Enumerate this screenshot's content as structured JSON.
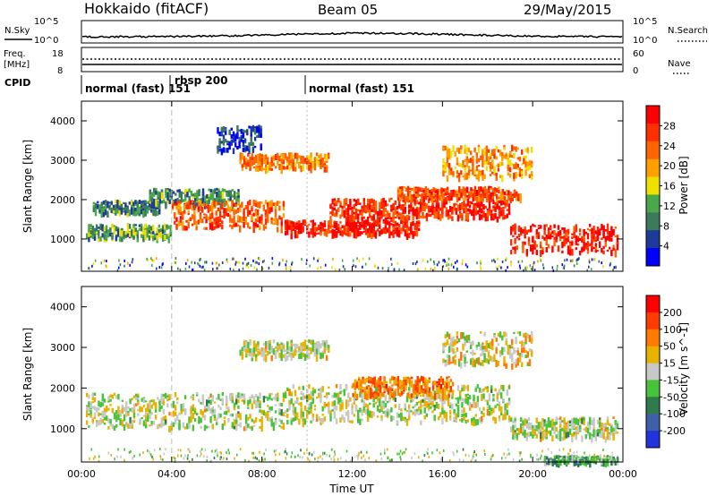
{
  "header": {
    "station": "Hokkaido (fitACF)",
    "beam": "Beam 05",
    "date": "29/May/2015"
  },
  "top_panels": {
    "nsky_label": "N.Sky",
    "nsearch_label": "N.Search",
    "freq_label_1": "Freq.",
    "freq_label_2": "[MHz]",
    "nave_label": "Nave",
    "cpid_label": "CPID",
    "left_ticks_noise": [
      "10^5",
      "10^0"
    ],
    "right_ticks_noise": [
      "10^5",
      "10^0"
    ],
    "left_ticks_freq": [
      "18",
      "8"
    ],
    "right_ticks_freq": [
      "60",
      "0"
    ],
    "cpid_segments": [
      {
        "label": "normal (fast) 151",
        "start_hour": 0.0
      },
      {
        "label": "rbsp 200",
        "start_hour": 4.0
      },
      {
        "label": "normal (fast) 151",
        "start_hour": 10.0
      }
    ]
  },
  "colors": {
    "power_scale": [
      "#0000ff",
      "#1e3a9a",
      "#3c7a5c",
      "#4aa84a",
      "#f0e000",
      "#ffa000",
      "#ff6400",
      "#ff3000",
      "#ff0000"
    ],
    "velocity_scale": [
      "#2233dd",
      "#3f5fa8",
      "#2e7b4c",
      "#47c43b",
      "#c8c8c8",
      "#e8b200",
      "#ff7a00",
      "#ff3c00",
      "#ff0000"
    ]
  },
  "chart_data": [
    {
      "type": "heatmap",
      "name": "power",
      "xlabel": "",
      "ylabel": "Slant Range [km]",
      "xlim": [
        0,
        24
      ],
      "ylim": [
        180,
        4500
      ],
      "yticks": [
        "1000",
        "2000",
        "3000",
        "4000"
      ],
      "colorbar_label": "Power [dB]",
      "colorbar_ticks": [
        "4",
        "8",
        "12",
        "16",
        "20",
        "24",
        "28"
      ],
      "bands": [
        {
          "x": [
            0.2,
            4.0
          ],
          "y0": 1050,
          "y1": 1400,
          "level": 0.35
        },
        {
          "x": [
            0.5,
            3.5
          ],
          "y0": 1700,
          "y1": 2000,
          "level": 0.3
        },
        {
          "x": [
            3.0,
            7.0
          ],
          "y0": 1900,
          "y1": 2300,
          "level": 0.3
        },
        {
          "x": [
            4.0,
            9.0
          ],
          "y0": 1300,
          "y1": 2000,
          "level": 0.75
        },
        {
          "x": [
            9.0,
            15.0
          ],
          "y0": 1150,
          "y1": 1500,
          "level": 0.9
        },
        {
          "x": [
            11.0,
            19.0
          ],
          "y0": 1550,
          "y1": 2050,
          "level": 0.85
        },
        {
          "x": [
            14.0,
            19.5
          ],
          "y0": 2050,
          "y1": 2350,
          "level": 0.8
        },
        {
          "x": [
            7.0,
            11.0
          ],
          "y0": 2800,
          "y1": 3200,
          "level": 0.7
        },
        {
          "x": [
            16.0,
            20.0
          ],
          "y0": 2600,
          "y1": 3400,
          "level": 0.65
        },
        {
          "x": [
            19.0,
            23.8
          ],
          "y0": 700,
          "y1": 1400,
          "level": 0.9
        },
        {
          "x": [
            6.0,
            8.0
          ],
          "y0": 3300,
          "y1": 3900,
          "level": 0.15
        }
      ]
    },
    {
      "type": "heatmap",
      "name": "velocity",
      "xlabel": "Time UT",
      "ylabel": "Slant Range [km]",
      "xlim": [
        0,
        24
      ],
      "ylim": [
        180,
        4500
      ],
      "xticks": [
        "00:00",
        "04:00",
        "08:00",
        "12:00",
        "16:00",
        "20:00",
        "00:00"
      ],
      "yticks": [
        "1000",
        "2000",
        "3000",
        "4000"
      ],
      "colorbar_label": "Velocity [m s^-1]",
      "colorbar_ticks": [
        "200",
        "100",
        "50",
        "15",
        "-15",
        "-50",
        "-100",
        "-200"
      ],
      "bands": [
        {
          "x": [
            0.2,
            9.0
          ],
          "y0": 1050,
          "y1": 1900,
          "level": 0.5
        },
        {
          "x": [
            9.0,
            19.0
          ],
          "y0": 1200,
          "y1": 2100,
          "level": 0.5
        },
        {
          "x": [
            12.0,
            16.5
          ],
          "y0": 1850,
          "y1": 2300,
          "level": 0.72
        },
        {
          "x": [
            7.0,
            11.0
          ],
          "y0": 2800,
          "y1": 3200,
          "level": 0.5
        },
        {
          "x": [
            16.0,
            20.0
          ],
          "y0": 2600,
          "y1": 3400,
          "level": 0.55
        },
        {
          "x": [
            19.0,
            23.8
          ],
          "y0": 800,
          "y1": 1300,
          "level": 0.5
        },
        {
          "x": [
            20.5,
            23.8
          ],
          "y0": 200,
          "y1": 350,
          "level": 0.35
        }
      ]
    }
  ]
}
